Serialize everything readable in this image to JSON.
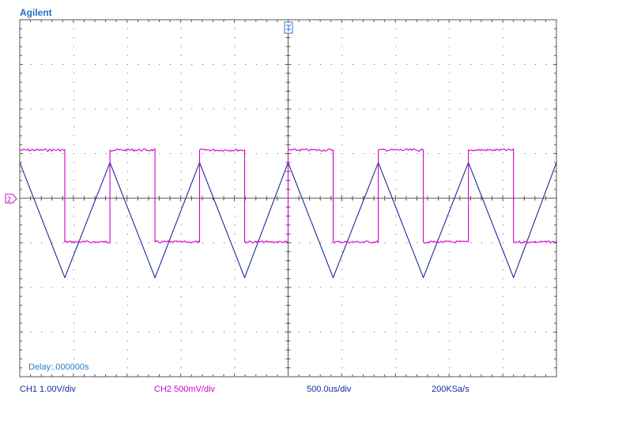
{
  "brand": "Agilent",
  "status": {
    "ch1_scale": "CH1 1.00V/div",
    "ch2_scale": "CH2 500mV/div",
    "timebase": "500.0us/div",
    "sample_rate": "200KSa/s"
  },
  "delay_label": "Delay:.000000s",
  "ch2_marker": "2",
  "colors": {
    "ch1": "#1a2a9a",
    "ch2": "#d000c8",
    "grid": "#555555",
    "trigger": "#2a7ad0"
  },
  "chart_data": {
    "type": "line",
    "grid": true,
    "x_divisions": 10,
    "y_divisions": 8,
    "xlim": [
      -5,
      5
    ],
    "ylim": [
      -4,
      4
    ],
    "series": [
      {
        "channel": "CH1",
        "shape": "triangle",
        "x": [
          -5.0,
          -4.16,
          -3.32,
          -2.48,
          -1.65,
          -0.81,
          0.0,
          0.84,
          1.68,
          2.52,
          3.36,
          4.2,
          5.0
        ],
        "y": [
          0.8,
          -1.78,
          0.8,
          -1.78,
          0.8,
          -1.78,
          0.8,
          -1.78,
          0.8,
          -1.78,
          0.8,
          -1.78,
          0.8
        ]
      },
      {
        "channel": "CH2",
        "shape": "square",
        "high": 1.08,
        "low": -0.98,
        "x": [
          -5.0,
          -4.16,
          -4.16,
          -3.32,
          -3.32,
          -2.48,
          -2.48,
          -1.65,
          -1.65,
          -0.81,
          -0.81,
          0.0,
          0.0,
          0.84,
          0.84,
          1.68,
          1.68,
          2.52,
          2.52,
          3.36,
          3.36,
          4.2,
          4.2,
          5.0
        ],
        "y": [
          1.08,
          1.08,
          -0.98,
          -0.98,
          1.08,
          1.08,
          -0.98,
          -0.98,
          1.08,
          1.08,
          -0.98,
          -0.98,
          1.08,
          1.08,
          -0.98,
          -0.98,
          1.08,
          1.08,
          -0.98,
          -0.98,
          1.08,
          1.08,
          -0.98,
          -0.98
        ]
      }
    ]
  }
}
